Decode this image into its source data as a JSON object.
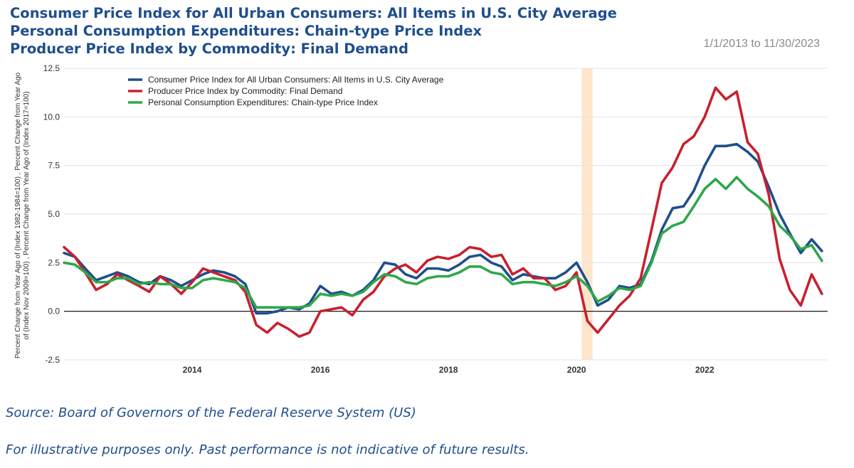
{
  "header": {
    "titles": [
      "Consumer Price Index for All Urban Consumers: All Items in U.S. City Average",
      "Personal Consumption Expenditures: Chain-type Price Index",
      "Producer Price Index by Commodity: Final Demand"
    ],
    "date_range": "1/1/2013 to 11/30/2023"
  },
  "footer": {
    "source": "Source: Board of Governors of the Federal Reserve System (US)",
    "disclaimer": "For illustrative purposes only. Past performance is not indicative of future results."
  },
  "chart_data": {
    "type": "line",
    "ylabel_lines": [
      "Percent Change from Year Ago of (Index 1982-1984=100) , Percent Change from Year Ago",
      "of (Index Nov 2009=100) , Percent Change from Year Ago of (Index 2017=100)"
    ],
    "xlim": [
      2012.0,
      2023.92
    ],
    "ylim": [
      -2.5,
      12.5
    ],
    "yticks": [
      -2.5,
      0.0,
      2.5,
      5.0,
      7.5,
      10.0,
      12.5
    ],
    "ytick_labels": [
      "-2.5",
      "0.0",
      "2.5",
      "5.0",
      "7.5",
      "10.0",
      "12.5"
    ],
    "xticks": [
      2014,
      2016,
      2018,
      2020,
      2022
    ],
    "xtick_labels": [
      "2014",
      "2016",
      "2018",
      "2020",
      "2022"
    ],
    "grid": "horizontal",
    "zero_line": true,
    "legend_position": "top-left",
    "recession_band": [
      2020.08,
      2020.25
    ],
    "recession_color": "#fde6cc",
    "series": [
      {
        "name": "Consumer Price Index for All Urban Consumers: All Items in U.S. City Average",
        "color": "#1f4e8c",
        "x": [
          2012.0,
          2012.17,
          2012.33,
          2012.5,
          2012.67,
          2012.83,
          2013.0,
          2013.17,
          2013.33,
          2013.5,
          2013.67,
          2013.83,
          2014.0,
          2014.17,
          2014.33,
          2014.5,
          2014.67,
          2014.83,
          2015.0,
          2015.17,
          2015.33,
          2015.5,
          2015.67,
          2015.83,
          2016.0,
          2016.17,
          2016.33,
          2016.5,
          2016.67,
          2016.83,
          2017.0,
          2017.17,
          2017.33,
          2017.5,
          2017.67,
          2017.83,
          2018.0,
          2018.17,
          2018.33,
          2018.5,
          2018.67,
          2018.83,
          2019.0,
          2019.17,
          2019.33,
          2019.5,
          2019.67,
          2019.83,
          2020.0,
          2020.17,
          2020.33,
          2020.5,
          2020.67,
          2020.83,
          2021.0,
          2021.17,
          2021.33,
          2021.5,
          2021.67,
          2021.83,
          2022.0,
          2022.17,
          2022.33,
          2022.5,
          2022.67,
          2022.83,
          2023.0,
          2023.17,
          2023.33,
          2023.5,
          2023.67,
          2023.83
        ],
        "y": [
          3.0,
          2.8,
          2.2,
          1.6,
          1.8,
          2.0,
          1.8,
          1.5,
          1.4,
          1.8,
          1.6,
          1.3,
          1.6,
          1.9,
          2.1,
          2.0,
          1.8,
          1.4,
          -0.1,
          -0.1,
          0.0,
          0.2,
          0.1,
          0.4,
          1.3,
          0.9,
          1.0,
          0.8,
          1.1,
          1.6,
          2.5,
          2.4,
          1.9,
          1.7,
          2.2,
          2.2,
          2.1,
          2.4,
          2.8,
          2.9,
          2.5,
          2.3,
          1.6,
          1.9,
          1.8,
          1.7,
          1.7,
          2.0,
          2.5,
          1.5,
          0.3,
          0.6,
          1.3,
          1.2,
          1.4,
          2.6,
          4.2,
          5.3,
          5.4,
          6.2,
          7.5,
          8.5,
          8.5,
          8.6,
          8.2,
          7.7,
          6.4,
          5.0,
          4.0,
          3.0,
          3.7,
          3.1
        ]
      },
      {
        "name": "Producer Price Index by Commodity: Final Demand",
        "color": "#c8202f",
        "x": [
          2012.0,
          2012.17,
          2012.33,
          2012.5,
          2012.67,
          2012.83,
          2013.0,
          2013.17,
          2013.33,
          2013.5,
          2013.67,
          2013.83,
          2014.0,
          2014.17,
          2014.33,
          2014.5,
          2014.67,
          2014.83,
          2015.0,
          2015.17,
          2015.33,
          2015.5,
          2015.67,
          2015.83,
          2016.0,
          2016.17,
          2016.33,
          2016.5,
          2016.67,
          2016.83,
          2017.0,
          2017.17,
          2017.33,
          2017.5,
          2017.67,
          2017.83,
          2018.0,
          2018.17,
          2018.33,
          2018.5,
          2018.67,
          2018.83,
          2019.0,
          2019.17,
          2019.33,
          2019.5,
          2019.67,
          2019.83,
          2020.0,
          2020.17,
          2020.33,
          2020.5,
          2020.67,
          2020.83,
          2021.0,
          2021.17,
          2021.33,
          2021.5,
          2021.67,
          2021.83,
          2022.0,
          2022.17,
          2022.33,
          2022.5,
          2022.67,
          2022.83,
          2023.0,
          2023.17,
          2023.33,
          2023.5,
          2023.67,
          2023.83
        ],
        "y": [
          3.3,
          2.8,
          2.0,
          1.1,
          1.4,
          1.9,
          1.6,
          1.3,
          1.0,
          1.8,
          1.4,
          0.9,
          1.5,
          2.2,
          2.0,
          1.8,
          1.6,
          1.0,
          -0.7,
          -1.1,
          -0.6,
          -0.9,
          -1.3,
          -1.1,
          0.0,
          0.1,
          0.2,
          -0.2,
          0.6,
          1.0,
          1.8,
          2.2,
          2.4,
          2.0,
          2.6,
          2.8,
          2.7,
          2.9,
          3.3,
          3.2,
          2.8,
          2.9,
          1.9,
          2.2,
          1.7,
          1.7,
          1.1,
          1.3,
          2.0,
          -0.5,
          -1.1,
          -0.4,
          0.3,
          0.8,
          1.7,
          4.2,
          6.6,
          7.4,
          8.6,
          9.0,
          10.0,
          11.5,
          10.9,
          11.3,
          8.7,
          8.1,
          6.0,
          2.7,
          1.1,
          0.3,
          1.9,
          0.9
        ]
      },
      {
        "name": "Personal Consumption Expenditures: Chain-type Price Index",
        "color": "#2ea84a",
        "x": [
          2012.0,
          2012.17,
          2012.33,
          2012.5,
          2012.67,
          2012.83,
          2013.0,
          2013.17,
          2013.33,
          2013.5,
          2013.67,
          2013.83,
          2014.0,
          2014.17,
          2014.33,
          2014.5,
          2014.67,
          2014.83,
          2015.0,
          2015.17,
          2015.33,
          2015.5,
          2015.67,
          2015.83,
          2016.0,
          2016.17,
          2016.33,
          2016.5,
          2016.67,
          2016.83,
          2017.0,
          2017.17,
          2017.33,
          2017.5,
          2017.67,
          2017.83,
          2018.0,
          2018.17,
          2018.33,
          2018.5,
          2018.67,
          2018.83,
          2019.0,
          2019.17,
          2019.33,
          2019.5,
          2019.67,
          2019.83,
          2020.0,
          2020.17,
          2020.33,
          2020.5,
          2020.67,
          2020.83,
          2021.0,
          2021.17,
          2021.33,
          2021.5,
          2021.67,
          2021.83,
          2022.0,
          2022.17,
          2022.33,
          2022.5,
          2022.67,
          2022.83,
          2023.0,
          2023.17,
          2023.33,
          2023.5,
          2023.67,
          2023.83
        ],
        "y": [
          2.5,
          2.4,
          2.0,
          1.5,
          1.5,
          1.7,
          1.7,
          1.4,
          1.5,
          1.4,
          1.4,
          1.2,
          1.2,
          1.6,
          1.7,
          1.6,
          1.5,
          1.2,
          0.2,
          0.2,
          0.2,
          0.2,
          0.2,
          0.3,
          0.9,
          0.8,
          0.9,
          0.8,
          1.0,
          1.5,
          1.9,
          1.8,
          1.5,
          1.4,
          1.7,
          1.8,
          1.8,
          2.0,
          2.3,
          2.3,
          2.0,
          1.9,
          1.4,
          1.5,
          1.5,
          1.4,
          1.3,
          1.5,
          1.8,
          1.3,
          0.5,
          0.8,
          1.2,
          1.1,
          1.3,
          2.5,
          4.0,
          4.4,
          4.6,
          5.4,
          6.3,
          6.8,
          6.3,
          6.9,
          6.3,
          5.9,
          5.4,
          4.4,
          3.9,
          3.2,
          3.4,
          2.6
        ]
      }
    ]
  }
}
